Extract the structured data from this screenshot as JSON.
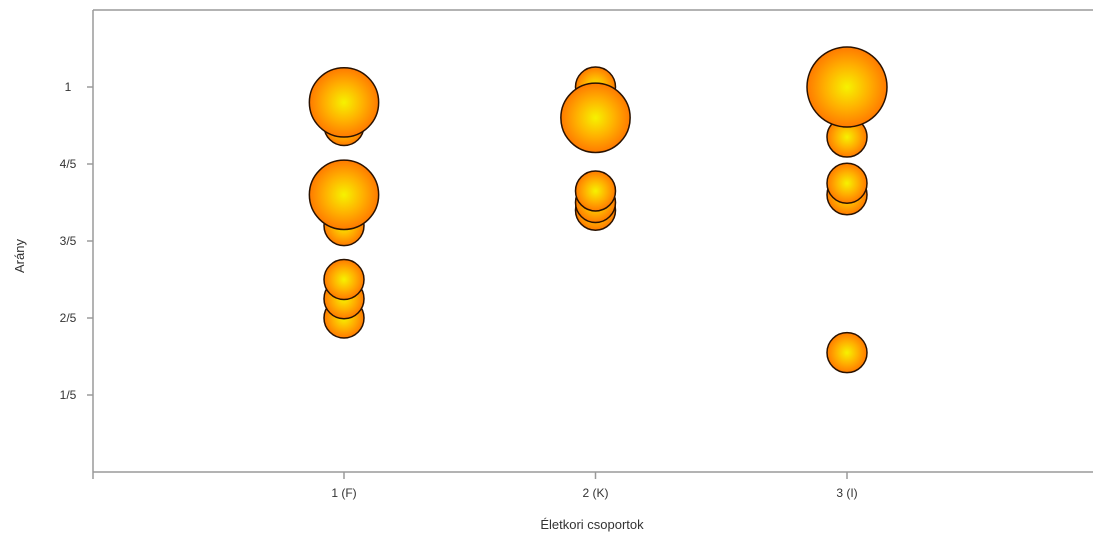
{
  "chart_data": {
    "type": "scatter",
    "subtype": "bubble",
    "xlabel": "Életkori csoportok",
    "ylabel": "Arány",
    "categories": [
      "1 (F)",
      "2 (K)",
      "3 (I)"
    ],
    "yticks": [
      {
        "value": 0.2,
        "label": "1/5"
      },
      {
        "value": 0.4,
        "label": "2/5"
      },
      {
        "value": 0.6,
        "label": "3/5"
      },
      {
        "value": 0.8,
        "label": "4/5"
      },
      {
        "value": 1.0,
        "label": "1"
      }
    ],
    "ylim": [
      0,
      1.2
    ],
    "grid": false,
    "colors": {
      "bubble_center": "#f6f200",
      "bubble_mid": "#ffb000",
      "bubble_edge": "#ff7a00",
      "outline": "#2a1200",
      "axis": "#9a9a9a"
    },
    "points": [
      {
        "category": "1 (F)",
        "y": 0.9,
        "size": 2
      },
      {
        "category": "1 (F)",
        "y": 0.96,
        "size": 6
      },
      {
        "category": "1 (F)",
        "y": 0.64,
        "size": 2
      },
      {
        "category": "1 (F)",
        "y": 0.72,
        "size": 6
      },
      {
        "category": "1 (F)",
        "y": 0.4,
        "size": 2
      },
      {
        "category": "1 (F)",
        "y": 0.45,
        "size": 2
      },
      {
        "category": "1 (F)",
        "y": 0.5,
        "size": 2
      },
      {
        "category": "2 (K)",
        "y": 0.92,
        "size": 6
      },
      {
        "category": "2 (K)",
        "y": 0.94,
        "size": 2
      },
      {
        "category": "2 (K)",
        "y": 0.97,
        "size": 2
      },
      {
        "category": "2 (K)",
        "y": 1.0,
        "size": 2
      },
      {
        "category": "2 (K)",
        "y": 0.68,
        "size": 2
      },
      {
        "category": "2 (K)",
        "y": 0.7,
        "size": 2
      },
      {
        "category": "2 (K)",
        "y": 0.73,
        "size": 2
      },
      {
        "category": "3 (I)",
        "y": 0.87,
        "size": 2
      },
      {
        "category": "3 (I)",
        "y": 1.0,
        "size": 8
      },
      {
        "category": "3 (I)",
        "y": 0.72,
        "size": 2
      },
      {
        "category": "3 (I)",
        "y": 0.75,
        "size": 2
      },
      {
        "category": "3 (I)",
        "y": 0.31,
        "size": 2
      }
    ]
  }
}
